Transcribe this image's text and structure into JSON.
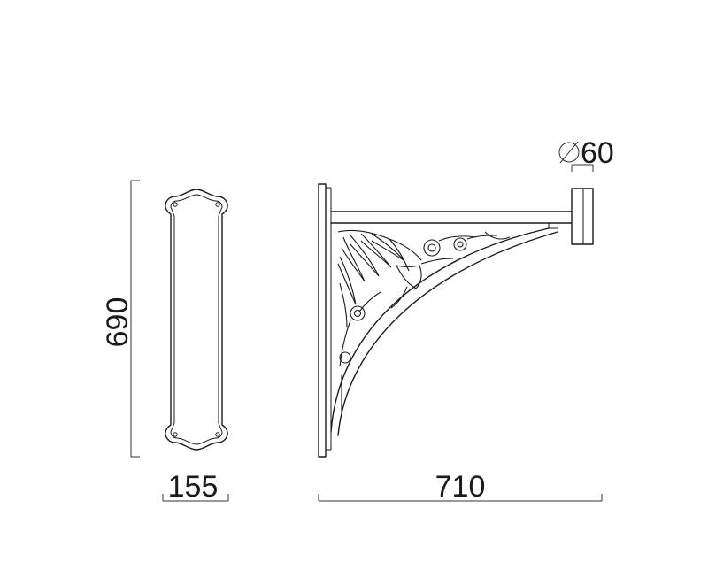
{
  "drawing": {
    "dimensions": {
      "height": "690",
      "width": "155",
      "projection": "710",
      "diameter_symbol": "∅",
      "diameter_value": "60"
    },
    "colors": {
      "line": "#1a1a1a",
      "background": "#ffffff"
    }
  }
}
